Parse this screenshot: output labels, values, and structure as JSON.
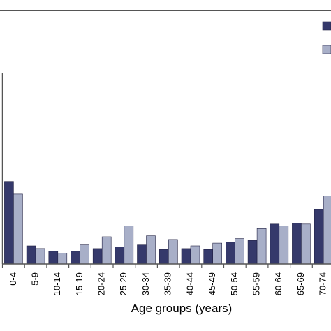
{
  "chart_data": {
    "type": "bar",
    "title": "",
    "xlabel": "Age groups (years)",
    "ylabel": "",
    "ylim": [
      0,
      100
    ],
    "grid": false,
    "legend_position": "top-right",
    "categories": [
      "0-4",
      "5-9",
      "10-14",
      "15-19",
      "20-24",
      "25-29",
      "30-34",
      "35-39",
      "40-44",
      "45-49",
      "50-54",
      "55-59",
      "60-64",
      "65-69",
      "70-74"
    ],
    "series": [
      {
        "name": "",
        "color": "#35396b",
        "values": [
          45.5,
          10,
          7,
          7,
          8.5,
          9.5,
          10.5,
          8,
          8.5,
          8,
          12,
          13,
          22,
          22.5,
          30
        ]
      },
      {
        "name": "",
        "color": "#a8afc8",
        "values": [
          38.5,
          8.5,
          6,
          10.5,
          15,
          21,
          15.5,
          13.5,
          10,
          11.5,
          14,
          19.5,
          21,
          22,
          37.5
        ]
      }
    ]
  }
}
